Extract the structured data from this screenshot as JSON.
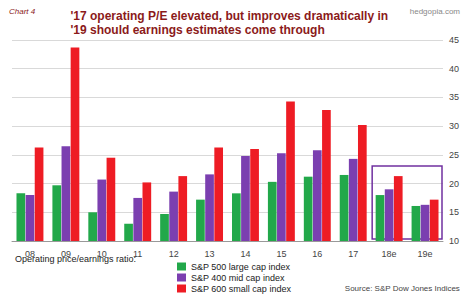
{
  "chart_data": {
    "type": "bar",
    "title": "'17 operating P/E elevated, but improves dramatically in '19 should earnings estimates come through",
    "chart_label": "Chart 4",
    "watermark": "hedgopia.com",
    "legend_title": "Operating price/earnings ratio:",
    "source": "Source: S&P Dow Jones Indices",
    "categories": [
      "08",
      "09",
      "10",
      "11",
      "12",
      "13",
      "14",
      "15",
      "16",
      "17",
      "18e",
      "19e"
    ],
    "series": [
      {
        "name": "S&P 500 large cap index",
        "color": "#22a84a",
        "values": [
          18.3,
          19.7,
          15.0,
          13.0,
          14.7,
          17.2,
          18.3,
          20.3,
          21.2,
          21.5,
          18.0,
          16.1
        ]
      },
      {
        "name": "S&P 400 mid cap index",
        "color": "#7b3fb0",
        "values": [
          18.0,
          26.5,
          20.7,
          17.5,
          18.6,
          21.6,
          24.8,
          25.3,
          25.8,
          24.3,
          19.0,
          16.3
        ]
      },
      {
        "name": "S&P 600 small cap index",
        "color": "#ee1c24",
        "values": [
          26.3,
          43.7,
          24.5,
          20.2,
          21.3,
          26.3,
          26.0,
          34.3,
          32.8,
          30.2,
          21.3,
          17.2
        ]
      }
    ],
    "ylim": [
      10,
      45
    ],
    "yticks": [
      10,
      15,
      20,
      25,
      30,
      35,
      40,
      45
    ],
    "grid": true,
    "legend": "bottom-left"
  }
}
